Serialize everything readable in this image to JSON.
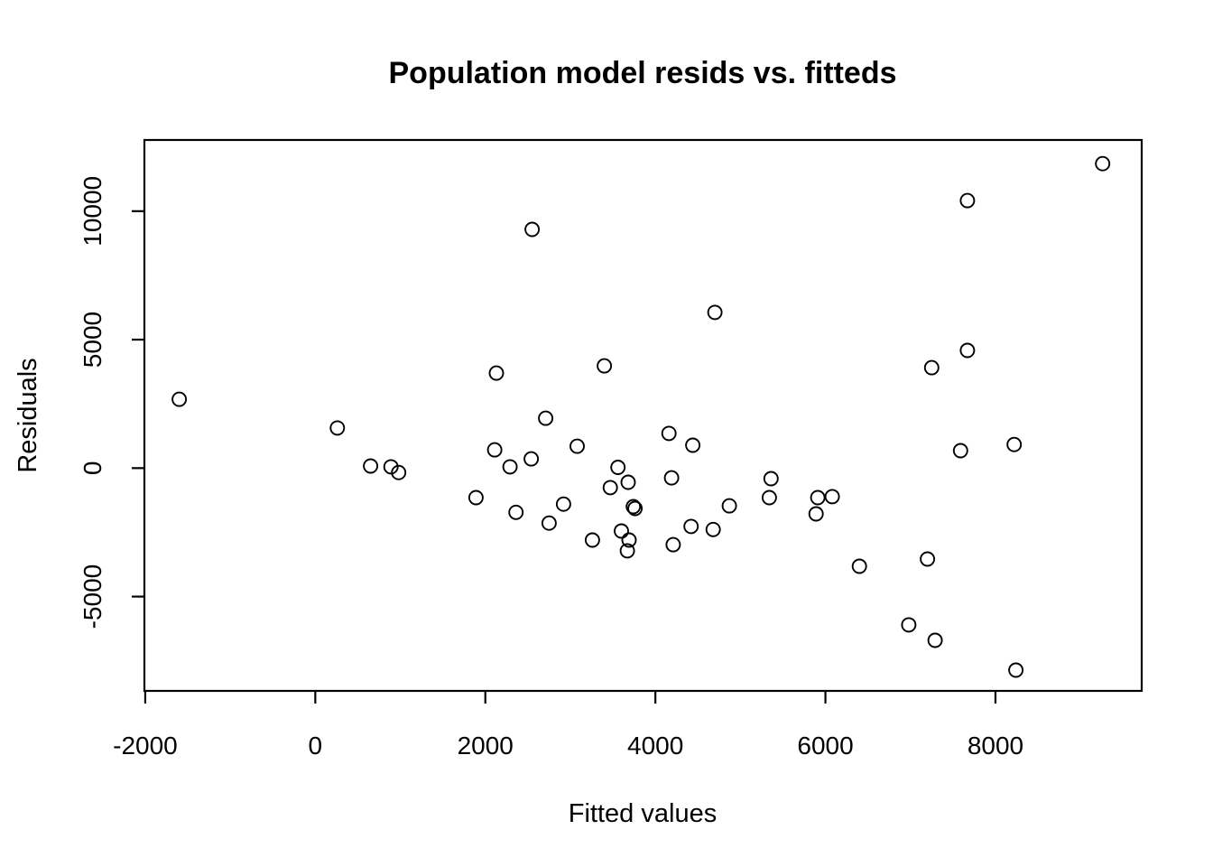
{
  "window": {
    "background_color": "#ffffff",
    "foreground_color": "#000000"
  },
  "chart_data": {
    "type": "scatter",
    "title": "Population model resids vs. fitteds",
    "xlabel": "Fitted values",
    "ylabel": "Residuals",
    "x_ticks": [
      -2000,
      0,
      2000,
      4000,
      6000,
      8000
    ],
    "y_ticks": [
      -5000,
      0,
      5000,
      10000
    ],
    "xlim": [
      -2010,
      9720
    ],
    "ylim": [
      -8670,
      12770
    ],
    "grid": false,
    "legend": false,
    "marker": "open-circle",
    "marker_color": "#000000",
    "points": [
      [
        -1600,
        2680
      ],
      [
        260,
        1560
      ],
      [
        650,
        80
      ],
      [
        890,
        50
      ],
      [
        980,
        -170
      ],
      [
        1890,
        -1150
      ],
      [
        2110,
        710
      ],
      [
        2130,
        3700
      ],
      [
        2290,
        50
      ],
      [
        2360,
        -1720
      ],
      [
        2540,
        360
      ],
      [
        2550,
        9290
      ],
      [
        2710,
        1940
      ],
      [
        2750,
        -2140
      ],
      [
        2920,
        -1400
      ],
      [
        3080,
        850
      ],
      [
        3260,
        -2800
      ],
      [
        3400,
        3980
      ],
      [
        3470,
        -760
      ],
      [
        3560,
        30
      ],
      [
        3600,
        -2450
      ],
      [
        3670,
        -3220
      ],
      [
        3680,
        -550
      ],
      [
        3690,
        -2800
      ],
      [
        3740,
        -1500
      ],
      [
        3760,
        -1570
      ],
      [
        4160,
        1350
      ],
      [
        4190,
        -380
      ],
      [
        4210,
        -2980
      ],
      [
        4420,
        -2270
      ],
      [
        4440,
        890
      ],
      [
        4680,
        -2390
      ],
      [
        4700,
        6060
      ],
      [
        4870,
        -1470
      ],
      [
        5340,
        -1150
      ],
      [
        5360,
        -410
      ],
      [
        5890,
        -1780
      ],
      [
        5910,
        -1150
      ],
      [
        6080,
        -1110
      ],
      [
        6400,
        -3820
      ],
      [
        6980,
        -6100
      ],
      [
        7200,
        -3540
      ],
      [
        7250,
        3910
      ],
      [
        7290,
        -6700
      ],
      [
        7590,
        680
      ],
      [
        7670,
        4580
      ],
      [
        7670,
        10410
      ],
      [
        8220,
        920
      ],
      [
        8240,
        -7860
      ],
      [
        9260,
        11850
      ]
    ]
  }
}
